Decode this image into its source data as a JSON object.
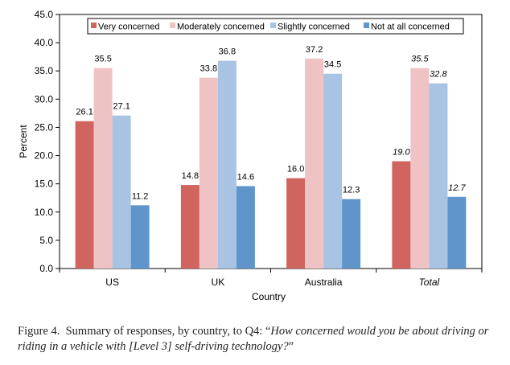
{
  "chart_data": {
    "type": "bar",
    "categories": [
      "US",
      "UK",
      "Australia",
      "Total"
    ],
    "category_italic": [
      false,
      false,
      false,
      true
    ],
    "xlabel": "Country",
    "ylabel": "Percent",
    "ylim": [
      0,
      45
    ],
    "y_ticks": [
      "0.0",
      "5.0",
      "10.0",
      "15.0",
      "20.0",
      "25.0",
      "30.0",
      "35.0",
      "40.0",
      "45.0"
    ],
    "grid": false,
    "legend_position": "top",
    "series": [
      {
        "name": "Very concerned",
        "color": "#d0645e",
        "values": [
          26.1,
          14.8,
          16.0,
          19.0
        ],
        "labels": [
          "26.1",
          "14.8",
          "16.0",
          "19.0"
        ]
      },
      {
        "name": "Moderately concerned",
        "color": "#efc3c3",
        "values": [
          35.5,
          33.8,
          37.2,
          35.5
        ],
        "labels": [
          "35.5",
          "33.8",
          "37.2",
          "35.5"
        ]
      },
      {
        "name": "Slightly concerned",
        "color": "#a9c3e2",
        "values": [
          27.1,
          36.8,
          34.5,
          32.8
        ],
        "labels": [
          "27.1",
          "36.8",
          "34.5",
          "32.8"
        ]
      },
      {
        "name": "Not at all concerned",
        "color": "#5f95ca",
        "values": [
          11.2,
          14.6,
          12.3,
          12.7
        ],
        "labels": [
          "11.2",
          "14.6",
          "12.3",
          "12.7"
        ]
      }
    ]
  },
  "caption": {
    "prefix": "Figure 4.  Summary of responses, by country, to Q4: “",
    "question": "How concerned would you be about driving or riding in a vehicle with [Level 3] self-driving technology?",
    "suffix": "”"
  }
}
